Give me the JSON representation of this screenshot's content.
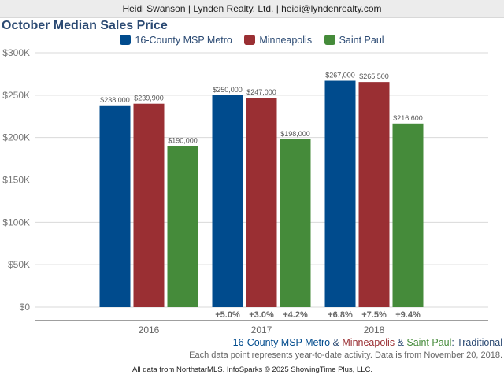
{
  "header": {
    "contact": "Heidi Swanson | Lynden Realty, Ltd. | heidi@lyndenrealty.com"
  },
  "chart_data": {
    "type": "bar",
    "title": "October Median Sales Price",
    "xlabel": "",
    "ylabel": "",
    "ylim": [
      0,
      300000
    ],
    "yticks": [
      0,
      50000,
      100000,
      150000,
      200000,
      250000,
      300000
    ],
    "ytick_labels": [
      "$0",
      "$50K",
      "$100K",
      "$150K",
      "$200K",
      "$250K",
      "$300K"
    ],
    "grid": true,
    "legend_position": "top-center",
    "categories": [
      "2016",
      "2017",
      "2018"
    ],
    "series": [
      {
        "name": "16-County MSP Metro",
        "color": "#004b8d",
        "values": [
          238000,
          250000,
          267000
        ],
        "value_labels": [
          "$238,000",
          "$250,000",
          "$267,000"
        ],
        "change_labels": [
          "",
          "+5.0%",
          "+6.8%"
        ]
      },
      {
        "name": "Minneapolis",
        "color": "#9a2f33",
        "values": [
          239900,
          247000,
          265500
        ],
        "value_labels": [
          "$239,900",
          "$247,000",
          "$265,500"
        ],
        "change_labels": [
          "",
          "+3.0%",
          "+7.5%"
        ]
      },
      {
        "name": "Saint Paul",
        "color": "#458b3a",
        "values": [
          190000,
          198000,
          216600
        ],
        "value_labels": [
          "$190,000",
          "$198,000",
          "$216,600"
        ],
        "change_labels": [
          "",
          "+4.2%",
          "+9.4%"
        ]
      }
    ]
  },
  "subtitle": {
    "part1": "16-County MSP Metro",
    "sep1": " & ",
    "part2": "Minneapolis",
    "sep2": " & ",
    "part3": "Saint Paul",
    "part4": ": Traditional"
  },
  "note": "Each data point represents year-to-date activity. Data is from November 20, 2018.",
  "footer": "All data from NorthstarMLS. InfoSparks © 2025 ShowingTime Plus, LLC."
}
